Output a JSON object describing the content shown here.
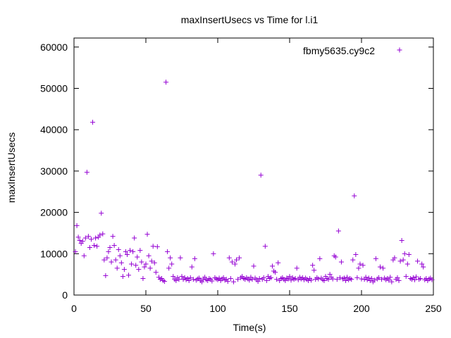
{
  "chart_data": {
    "type": "scatter",
    "title": "maxInsertUsecs vs Time for l.i1",
    "xlabel": "Time(s)",
    "ylabel": "maxInsertUsecs",
    "xlim": [
      0,
      250
    ],
    "ylim": [
      0,
      62000
    ],
    "xticks": [
      0,
      50,
      100,
      150,
      200,
      250
    ],
    "yticks": [
      0,
      10000,
      20000,
      30000,
      40000,
      50000,
      60000
    ],
    "grid": false,
    "legend_position": "top-right",
    "marker": "+",
    "series": [
      {
        "name": "fbmy5635.cy9c2",
        "color": "#9400d3",
        "points": [
          [
            1,
            10500
          ],
          [
            2,
            16800
          ],
          [
            3,
            14000
          ],
          [
            4,
            13200
          ],
          [
            5,
            12500
          ],
          [
            6,
            13000
          ],
          [
            7,
            9500
          ],
          [
            8,
            13800
          ],
          [
            9,
            29700
          ],
          [
            10,
            14200
          ],
          [
            11,
            11500
          ],
          [
            12,
            13500
          ],
          [
            13,
            41800
          ],
          [
            14,
            12000
          ],
          [
            15,
            13800
          ],
          [
            16,
            11800
          ],
          [
            17,
            14000
          ],
          [
            18,
            14500
          ],
          [
            19,
            19800
          ],
          [
            20,
            14800
          ],
          [
            21,
            8500
          ],
          [
            22,
            4700
          ],
          [
            23,
            9000
          ],
          [
            24,
            10500
          ],
          [
            25,
            11500
          ],
          [
            26,
            8000
          ],
          [
            27,
            14200
          ],
          [
            28,
            12000
          ],
          [
            29,
            8500
          ],
          [
            30,
            6500
          ],
          [
            31,
            11000
          ],
          [
            32,
            9500
          ],
          [
            33,
            7800
          ],
          [
            34,
            4500
          ],
          [
            35,
            6200
          ],
          [
            36,
            10500
          ],
          [
            37,
            9800
          ],
          [
            38,
            4800
          ],
          [
            39,
            10800
          ],
          [
            40,
            7500
          ],
          [
            41,
            10500
          ],
          [
            42,
            13800
          ],
          [
            43,
            7200
          ],
          [
            44,
            9200
          ],
          [
            45,
            6200
          ],
          [
            46,
            10800
          ],
          [
            47,
            8000
          ],
          [
            48,
            4000
          ],
          [
            49,
            6800
          ],
          [
            50,
            7500
          ],
          [
            51,
            14700
          ],
          [
            52,
            9500
          ],
          [
            53,
            6500
          ],
          [
            54,
            8200
          ],
          [
            55,
            11800
          ],
          [
            56,
            7800
          ],
          [
            57,
            5500
          ],
          [
            58,
            11700
          ],
          [
            59,
            4300
          ],
          [
            60,
            3800
          ],
          [
            61,
            4000
          ],
          [
            62,
            3500
          ],
          [
            63,
            3300
          ],
          [
            64,
            51500
          ],
          [
            65,
            10500
          ],
          [
            66,
            6500
          ],
          [
            67,
            9000
          ],
          [
            68,
            7500
          ],
          [
            69,
            4500
          ],
          [
            70,
            3800
          ],
          [
            71,
            3500
          ],
          [
            72,
            4200
          ],
          [
            73,
            3800
          ],
          [
            74,
            9000
          ],
          [
            75,
            4500
          ],
          [
            76,
            3800
          ],
          [
            77,
            4200
          ],
          [
            78,
            3700
          ],
          [
            79,
            4000
          ],
          [
            80,
            3500
          ],
          [
            81,
            4200
          ],
          [
            82,
            6800
          ],
          [
            83,
            3800
          ],
          [
            84,
            8800
          ],
          [
            85,
            3600
          ],
          [
            86,
            3900
          ],
          [
            87,
            4100
          ],
          [
            88,
            3500
          ],
          [
            89,
            3200
          ],
          [
            90,
            3900
          ],
          [
            91,
            4300
          ],
          [
            92,
            3700
          ],
          [
            93,
            3500
          ],
          [
            94,
            4000
          ],
          [
            95,
            3800
          ],
          [
            96,
            3400
          ],
          [
            97,
            10000
          ],
          [
            98,
            4200
          ],
          [
            99,
            3900
          ],
          [
            100,
            3700
          ],
          [
            101,
            4100
          ],
          [
            102,
            3500
          ],
          [
            103,
            3900
          ],
          [
            104,
            4200
          ],
          [
            105,
            3600
          ],
          [
            106,
            3800
          ],
          [
            107,
            3300
          ],
          [
            108,
            9000
          ],
          [
            109,
            4000
          ],
          [
            110,
            8000
          ],
          [
            111,
            3200
          ],
          [
            112,
            7500
          ],
          [
            113,
            8500
          ],
          [
            114,
            3800
          ],
          [
            115,
            9000
          ],
          [
            116,
            4200
          ],
          [
            117,
            4500
          ],
          [
            118,
            4000
          ],
          [
            119,
            3800
          ],
          [
            120,
            4200
          ],
          [
            121,
            3900
          ],
          [
            122,
            3600
          ],
          [
            123,
            4300
          ],
          [
            124,
            3800
          ],
          [
            125,
            7000
          ],
          [
            126,
            4100
          ],
          [
            127,
            3700
          ],
          [
            128,
            3300
          ],
          [
            129,
            4000
          ],
          [
            130,
            29000
          ],
          [
            131,
            3800
          ],
          [
            132,
            4200
          ],
          [
            133,
            11800
          ],
          [
            134,
            3500
          ],
          [
            135,
            4500
          ],
          [
            136,
            4000
          ],
          [
            137,
            4200
          ],
          [
            138,
            7000
          ],
          [
            139,
            5800
          ],
          [
            140,
            5500
          ],
          [
            141,
            3800
          ],
          [
            142,
            7800
          ],
          [
            143,
            3500
          ],
          [
            144,
            4000
          ],
          [
            145,
            4200
          ],
          [
            146,
            3800
          ],
          [
            147,
            3500
          ],
          [
            148,
            4100
          ],
          [
            149,
            3900
          ],
          [
            150,
            4500
          ],
          [
            151,
            3600
          ],
          [
            152,
            4200
          ],
          [
            153,
            3800
          ],
          [
            154,
            4000
          ],
          [
            155,
            6500
          ],
          [
            156,
            3700
          ],
          [
            157,
            4300
          ],
          [
            158,
            3900
          ],
          [
            159,
            4200
          ],
          [
            160,
            3700
          ],
          [
            161,
            4100
          ],
          [
            162,
            3800
          ],
          [
            163,
            3500
          ],
          [
            164,
            4000
          ],
          [
            165,
            3600
          ],
          [
            166,
            7200
          ],
          [
            167,
            6000
          ],
          [
            168,
            3800
          ],
          [
            169,
            4200
          ],
          [
            170,
            3900
          ],
          [
            171,
            8800
          ],
          [
            172,
            4100
          ],
          [
            173,
            3700
          ],
          [
            174,
            3500
          ],
          [
            175,
            4500
          ],
          [
            176,
            4000
          ],
          [
            177,
            3800
          ],
          [
            178,
            5000
          ],
          [
            179,
            4300
          ],
          [
            180,
            3900
          ],
          [
            181,
            9500
          ],
          [
            182,
            9200
          ],
          [
            183,
            3800
          ],
          [
            184,
            15500
          ],
          [
            185,
            4200
          ],
          [
            186,
            8000
          ],
          [
            187,
            3900
          ],
          [
            188,
            4100
          ],
          [
            189,
            3500
          ],
          [
            190,
            4300
          ],
          [
            191,
            3700
          ],
          [
            192,
            4000
          ],
          [
            193,
            3800
          ],
          [
            194,
            8500
          ],
          [
            195,
            24000
          ],
          [
            196,
            9800
          ],
          [
            197,
            4200
          ],
          [
            198,
            6500
          ],
          [
            199,
            7500
          ],
          [
            200,
            3900
          ],
          [
            201,
            7200
          ],
          [
            202,
            3800
          ],
          [
            203,
            4300
          ],
          [
            204,
            3700
          ],
          [
            205,
            4100
          ],
          [
            206,
            3500
          ],
          [
            207,
            4000
          ],
          [
            208,
            3200
          ],
          [
            209,
            3600
          ],
          [
            210,
            8800
          ],
          [
            211,
            3900
          ],
          [
            212,
            4200
          ],
          [
            213,
            6800
          ],
          [
            214,
            3800
          ],
          [
            215,
            6500
          ],
          [
            216,
            4100
          ],
          [
            217,
            3700
          ],
          [
            218,
            4000
          ],
          [
            219,
            3600
          ],
          [
            220,
            4300
          ],
          [
            221,
            3200
          ],
          [
            222,
            8500
          ],
          [
            223,
            9000
          ],
          [
            224,
            3800
          ],
          [
            225,
            4200
          ],
          [
            226,
            3500
          ],
          [
            227,
            8200
          ],
          [
            228,
            13200
          ],
          [
            229,
            8500
          ],
          [
            230,
            10000
          ],
          [
            231,
            4500
          ],
          [
            232,
            7500
          ],
          [
            233,
            9800
          ],
          [
            234,
            4000
          ],
          [
            235,
            3800
          ],
          [
            236,
            4200
          ],
          [
            237,
            3700
          ],
          [
            238,
            4400
          ],
          [
            239,
            8200
          ],
          [
            240,
            3800
          ],
          [
            241,
            4000
          ],
          [
            242,
            7500
          ],
          [
            243,
            6800
          ],
          [
            244,
            3700
          ],
          [
            245,
            4000
          ],
          [
            246,
            3500
          ],
          [
            247,
            3900
          ],
          [
            248,
            4100
          ],
          [
            249,
            3700
          ]
        ]
      }
    ]
  }
}
